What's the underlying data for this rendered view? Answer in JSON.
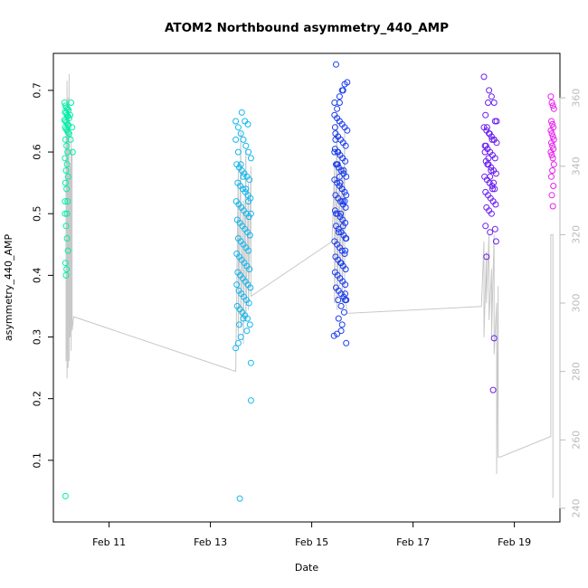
{
  "chart_data": {
    "type": "scatter",
    "title": "ATOM2 Northbound asymmetry_440_AMP",
    "xlabel": "Date",
    "ylabel": "asymmetry_440_AMP",
    "x_unit": "days in February",
    "xlim": [
      9.9,
      19.9
    ],
    "ylim": [
      0.0,
      0.76
    ],
    "y2lim": [
      236,
      373
    ],
    "x_ticks": [
      11,
      13,
      15,
      17,
      19
    ],
    "x_tick_labels": [
      "Feb 11",
      "Feb 13",
      "Feb 15",
      "Feb 17",
      "Feb 19"
    ],
    "y_ticks": [
      0.1,
      0.2,
      0.3,
      0.4,
      0.5,
      0.6,
      0.7
    ],
    "y_tick_labels": [
      "0.1",
      "0.2",
      "0.3",
      "0.4",
      "0.5",
      "0.6",
      "0.7"
    ],
    "y2_ticks": [
      240,
      260,
      280,
      300,
      320,
      340,
      360
    ],
    "y2_tick_labels": [
      "240",
      "260",
      "280",
      "300",
      "320",
      "340",
      "360"
    ],
    "grid": false,
    "legend": "none",
    "colors": {
      "secondary_line": "#c8c8c8",
      "secondary_axis": "#bbbbbb",
      "cluster_colors": [
        "#00f0a8",
        "#13b8ee",
        "#1a3cf0",
        "#6a1ef0",
        "#e81ef0"
      ]
    },
    "series": [
      {
        "marker": "circle-open",
        "color": "#00f0a8",
        "x": [
          10.12,
          10.14,
          10.16,
          10.18,
          10.2,
          10.13,
          10.15,
          10.17,
          10.19,
          10.21,
          10.12,
          10.14,
          10.16,
          10.18,
          10.2,
          10.13,
          10.15,
          10.17,
          10.19,
          10.21,
          10.14,
          10.16,
          10.18,
          10.13,
          10.17,
          10.15,
          10.19,
          10.14,
          10.16,
          10.18,
          10.13,
          10.15,
          10.17,
          10.19,
          10.14,
          10.16,
          10.15,
          10.13,
          10.17,
          10.25,
          10.23,
          10.27,
          10.24,
          10.28,
          10.14
        ],
        "y": [
          0.68,
          0.675,
          0.672,
          0.67,
          0.668,
          0.665,
          0.663,
          0.66,
          0.658,
          0.655,
          0.652,
          0.65,
          0.648,
          0.645,
          0.643,
          0.64,
          0.637,
          0.635,
          0.632,
          0.63,
          0.62,
          0.61,
          0.6,
          0.59,
          0.58,
          0.57,
          0.56,
          0.55,
          0.54,
          0.52,
          0.5,
          0.48,
          0.46,
          0.44,
          0.42,
          0.41,
          0.4,
          0.52,
          0.5,
          0.68,
          0.66,
          0.64,
          0.62,
          0.6,
          0.042
        ]
      },
      {
        "marker": "circle-open",
        "color": "#13b8ee",
        "x": [
          13.5,
          13.55,
          13.6,
          13.65,
          13.7,
          13.75,
          13.8,
          13.52,
          13.57,
          13.62,
          13.67,
          13.72,
          13.77,
          13.54,
          13.59,
          13.64,
          13.69,
          13.74,
          13.79,
          13.51,
          13.56,
          13.61,
          13.66,
          13.71,
          13.76,
          13.53,
          13.58,
          13.63,
          13.68,
          13.73,
          13.78,
          13.55,
          13.6,
          13.65,
          13.7,
          13.75,
          13.52,
          13.57,
          13.62,
          13.67,
          13.72,
          13.77,
          13.54,
          13.59,
          13.64,
          13.69,
          13.74,
          13.79,
          13.56,
          13.61,
          13.66,
          13.71,
          13.76,
          13.53,
          13.58,
          13.63,
          13.68,
          13.73,
          13.5,
          13.55,
          13.6,
          13.65,
          13.7,
          13.75,
          13.8,
          13.62,
          13.68,
          13.74,
          13.5,
          13.55,
          13.6,
          13.57,
          13.65,
          13.72,
          13.78,
          13.8,
          13.8,
          13.58,
          13.52
        ],
        "y": [
          0.65,
          0.64,
          0.63,
          0.62,
          0.61,
          0.6,
          0.59,
          0.58,
          0.575,
          0.57,
          0.565,
          0.56,
          0.555,
          0.55,
          0.545,
          0.54,
          0.535,
          0.53,
          0.525,
          0.52,
          0.515,
          0.51,
          0.505,
          0.5,
          0.495,
          0.49,
          0.485,
          0.48,
          0.475,
          0.47,
          0.465,
          0.46,
          0.455,
          0.45,
          0.445,
          0.44,
          0.435,
          0.43,
          0.425,
          0.42,
          0.415,
          0.41,
          0.405,
          0.4,
          0.395,
          0.39,
          0.385,
          0.38,
          0.375,
          0.37,
          0.365,
          0.36,
          0.355,
          0.35,
          0.345,
          0.34,
          0.335,
          0.33,
          0.62,
          0.6,
          0.58,
          0.56,
          0.54,
          0.52,
          0.5,
          0.664,
          0.65,
          0.645,
          0.282,
          0.29,
          0.3,
          0.32,
          0.33,
          0.31,
          0.32,
          0.258,
          0.197,
          0.038,
          0.385
        ]
      },
      {
        "marker": "circle-open",
        "color": "#1a3cf0",
        "x": [
          15.45,
          15.5,
          15.55,
          15.6,
          15.65,
          15.7,
          15.47,
          15.52,
          15.57,
          15.62,
          15.67,
          15.46,
          15.51,
          15.56,
          15.61,
          15.66,
          15.48,
          15.53,
          15.58,
          15.63,
          15.68,
          15.45,
          15.5,
          15.55,
          15.6,
          15.65,
          15.47,
          15.52,
          15.57,
          15.62,
          15.67,
          15.46,
          15.51,
          15.56,
          15.61,
          15.66,
          15.48,
          15.53,
          15.58,
          15.63,
          15.68,
          15.45,
          15.5,
          15.55,
          15.6,
          15.65,
          15.47,
          15.52,
          15.57,
          15.62,
          15.67,
          15.46,
          15.51,
          15.56,
          15.61,
          15.66,
          15.48,
          15.53,
          15.58,
          15.63,
          15.68,
          15.45,
          15.5,
          15.55,
          15.6,
          15.65,
          15.47,
          15.52,
          15.57,
          15.62,
          15.67,
          15.46,
          15.51,
          15.56,
          15.61,
          15.66,
          15.48,
          15.53,
          15.58,
          15.63,
          15.68,
          15.45,
          15.5,
          15.55,
          15.6,
          15.65,
          15.52,
          15.58,
          15.64,
          15.53,
          15.6,
          15.66,
          15.44,
          15.5,
          15.58,
          15.68,
          15.55,
          15.62,
          15.7,
          15.48,
          15.66
        ],
        "y": [
          0.66,
          0.655,
          0.65,
          0.645,
          0.64,
          0.635,
          0.63,
          0.625,
          0.62,
          0.615,
          0.61,
          0.605,
          0.6,
          0.595,
          0.59,
          0.585,
          0.58,
          0.575,
          0.57,
          0.565,
          0.56,
          0.555,
          0.55,
          0.545,
          0.54,
          0.535,
          0.53,
          0.525,
          0.52,
          0.515,
          0.51,
          0.505,
          0.5,
          0.495,
          0.49,
          0.485,
          0.48,
          0.475,
          0.47,
          0.465,
          0.46,
          0.455,
          0.45,
          0.445,
          0.44,
          0.435,
          0.43,
          0.425,
          0.42,
          0.415,
          0.41,
          0.405,
          0.4,
          0.395,
          0.39,
          0.385,
          0.38,
          0.375,
          0.37,
          0.365,
          0.36,
          0.6,
          0.58,
          0.56,
          0.54,
          0.52,
          0.62,
          0.6,
          0.5,
          0.48,
          0.46,
          0.64,
          0.58,
          0.55,
          0.52,
          0.44,
          0.5,
          0.47,
          0.42,
          0.57,
          0.53,
          0.68,
          0.67,
          0.69,
          0.7,
          0.71,
          0.36,
          0.35,
          0.34,
          0.33,
          0.32,
          0.37,
          0.302,
          0.305,
          0.31,
          0.29,
          0.68,
          0.7,
          0.713,
          0.742,
          0.36
        ]
      },
      {
        "marker": "circle-open",
        "color": "#6a1ef0",
        "x": [
          18.4,
          18.45,
          18.5,
          18.55,
          18.6,
          18.65,
          18.42,
          18.47,
          18.52,
          18.57,
          18.62,
          18.44,
          18.49,
          18.54,
          18.59,
          18.64,
          18.41,
          18.46,
          18.51,
          18.56,
          18.61,
          18.43,
          18.48,
          18.53,
          18.58,
          18.63,
          18.45,
          18.5,
          18.55,
          18.6,
          18.42,
          18.47,
          18.52,
          18.57,
          18.62,
          18.44,
          18.49,
          18.54,
          18.59,
          18.46,
          18.51,
          18.56,
          18.43,
          18.48,
          18.4,
          18.5,
          18.6,
          18.65,
          18.62,
          18.64,
          18.43,
          18.52,
          18.58,
          18.6,
          18.45,
          18.55
        ],
        "y": [
          0.64,
          0.635,
          0.63,
          0.625,
          0.62,
          0.615,
          0.61,
          0.605,
          0.6,
          0.595,
          0.59,
          0.585,
          0.58,
          0.575,
          0.57,
          0.565,
          0.56,
          0.555,
          0.55,
          0.545,
          0.54,
          0.535,
          0.53,
          0.525,
          0.52,
          0.515,
          0.51,
          0.505,
          0.5,
          0.62,
          0.6,
          0.58,
          0.56,
          0.54,
          0.65,
          0.61,
          0.59,
          0.57,
          0.55,
          0.64,
          0.63,
          0.62,
          0.66,
          0.68,
          0.722,
          0.7,
          0.68,
          0.65,
          0.475,
          0.455,
          0.48,
          0.47,
          0.214,
          0.298,
          0.43,
          0.69
        ]
      },
      {
        "marker": "circle-open",
        "color": "#e81ef0",
        "x": [
          19.72,
          19.74,
          19.76,
          19.78,
          19.73,
          19.75,
          19.77,
          19.72,
          19.74,
          19.76,
          19.78,
          19.73,
          19.75,
          19.77,
          19.72,
          19.74,
          19.76,
          19.78,
          19.75,
          19.73,
          19.77,
          19.74,
          19.76
        ],
        "y": [
          0.69,
          0.68,
          0.675,
          0.67,
          0.65,
          0.645,
          0.64,
          0.635,
          0.63,
          0.625,
          0.62,
          0.615,
          0.61,
          0.605,
          0.6,
          0.595,
          0.59,
          0.58,
          0.57,
          0.56,
          0.545,
          0.53,
          0.512
        ]
      }
    ],
    "secondary_series": {
      "axis": "right",
      "style": "line",
      "color": "#c8c8c8",
      "x": [
        10.15,
        10.15,
        10.17,
        10.17,
        10.19,
        10.19,
        10.21,
        10.21,
        10.23,
        10.23,
        10.25,
        10.25,
        10.27,
        10.27,
        10.3,
        13.5,
        13.55,
        13.55,
        13.6,
        13.6,
        13.65,
        13.65,
        13.7,
        13.7,
        13.75,
        13.75,
        13.8,
        13.8,
        15.4,
        15.45,
        15.45,
        15.5,
        15.5,
        15.55,
        15.55,
        15.6,
        15.6,
        15.65,
        15.65,
        15.7,
        18.35,
        18.4,
        18.4,
        18.45,
        18.45,
        18.5,
        18.5,
        18.55,
        18.55,
        18.6,
        18.6,
        18.65,
        18.65,
        18.68,
        18.68,
        18.72,
        19.72,
        19.72,
        19.76,
        19.76
      ],
      "y": [
        355,
        283,
        365,
        278,
        360,
        281,
        367,
        283,
        340,
        290,
        350,
        286,
        345,
        292,
        296,
        280,
        340,
        290,
        350,
        293,
        330,
        288,
        345,
        295,
        335,
        298,
        340,
        302,
        318,
        340,
        300,
        355,
        298,
        345,
        305,
        340,
        300,
        350,
        302,
        297,
        299,
        318,
        290,
        315,
        300,
        320,
        295,
        310,
        290,
        320,
        285,
        300,
        250,
        305,
        255,
        255,
        261,
        320,
        320,
        243
      ]
    }
  }
}
